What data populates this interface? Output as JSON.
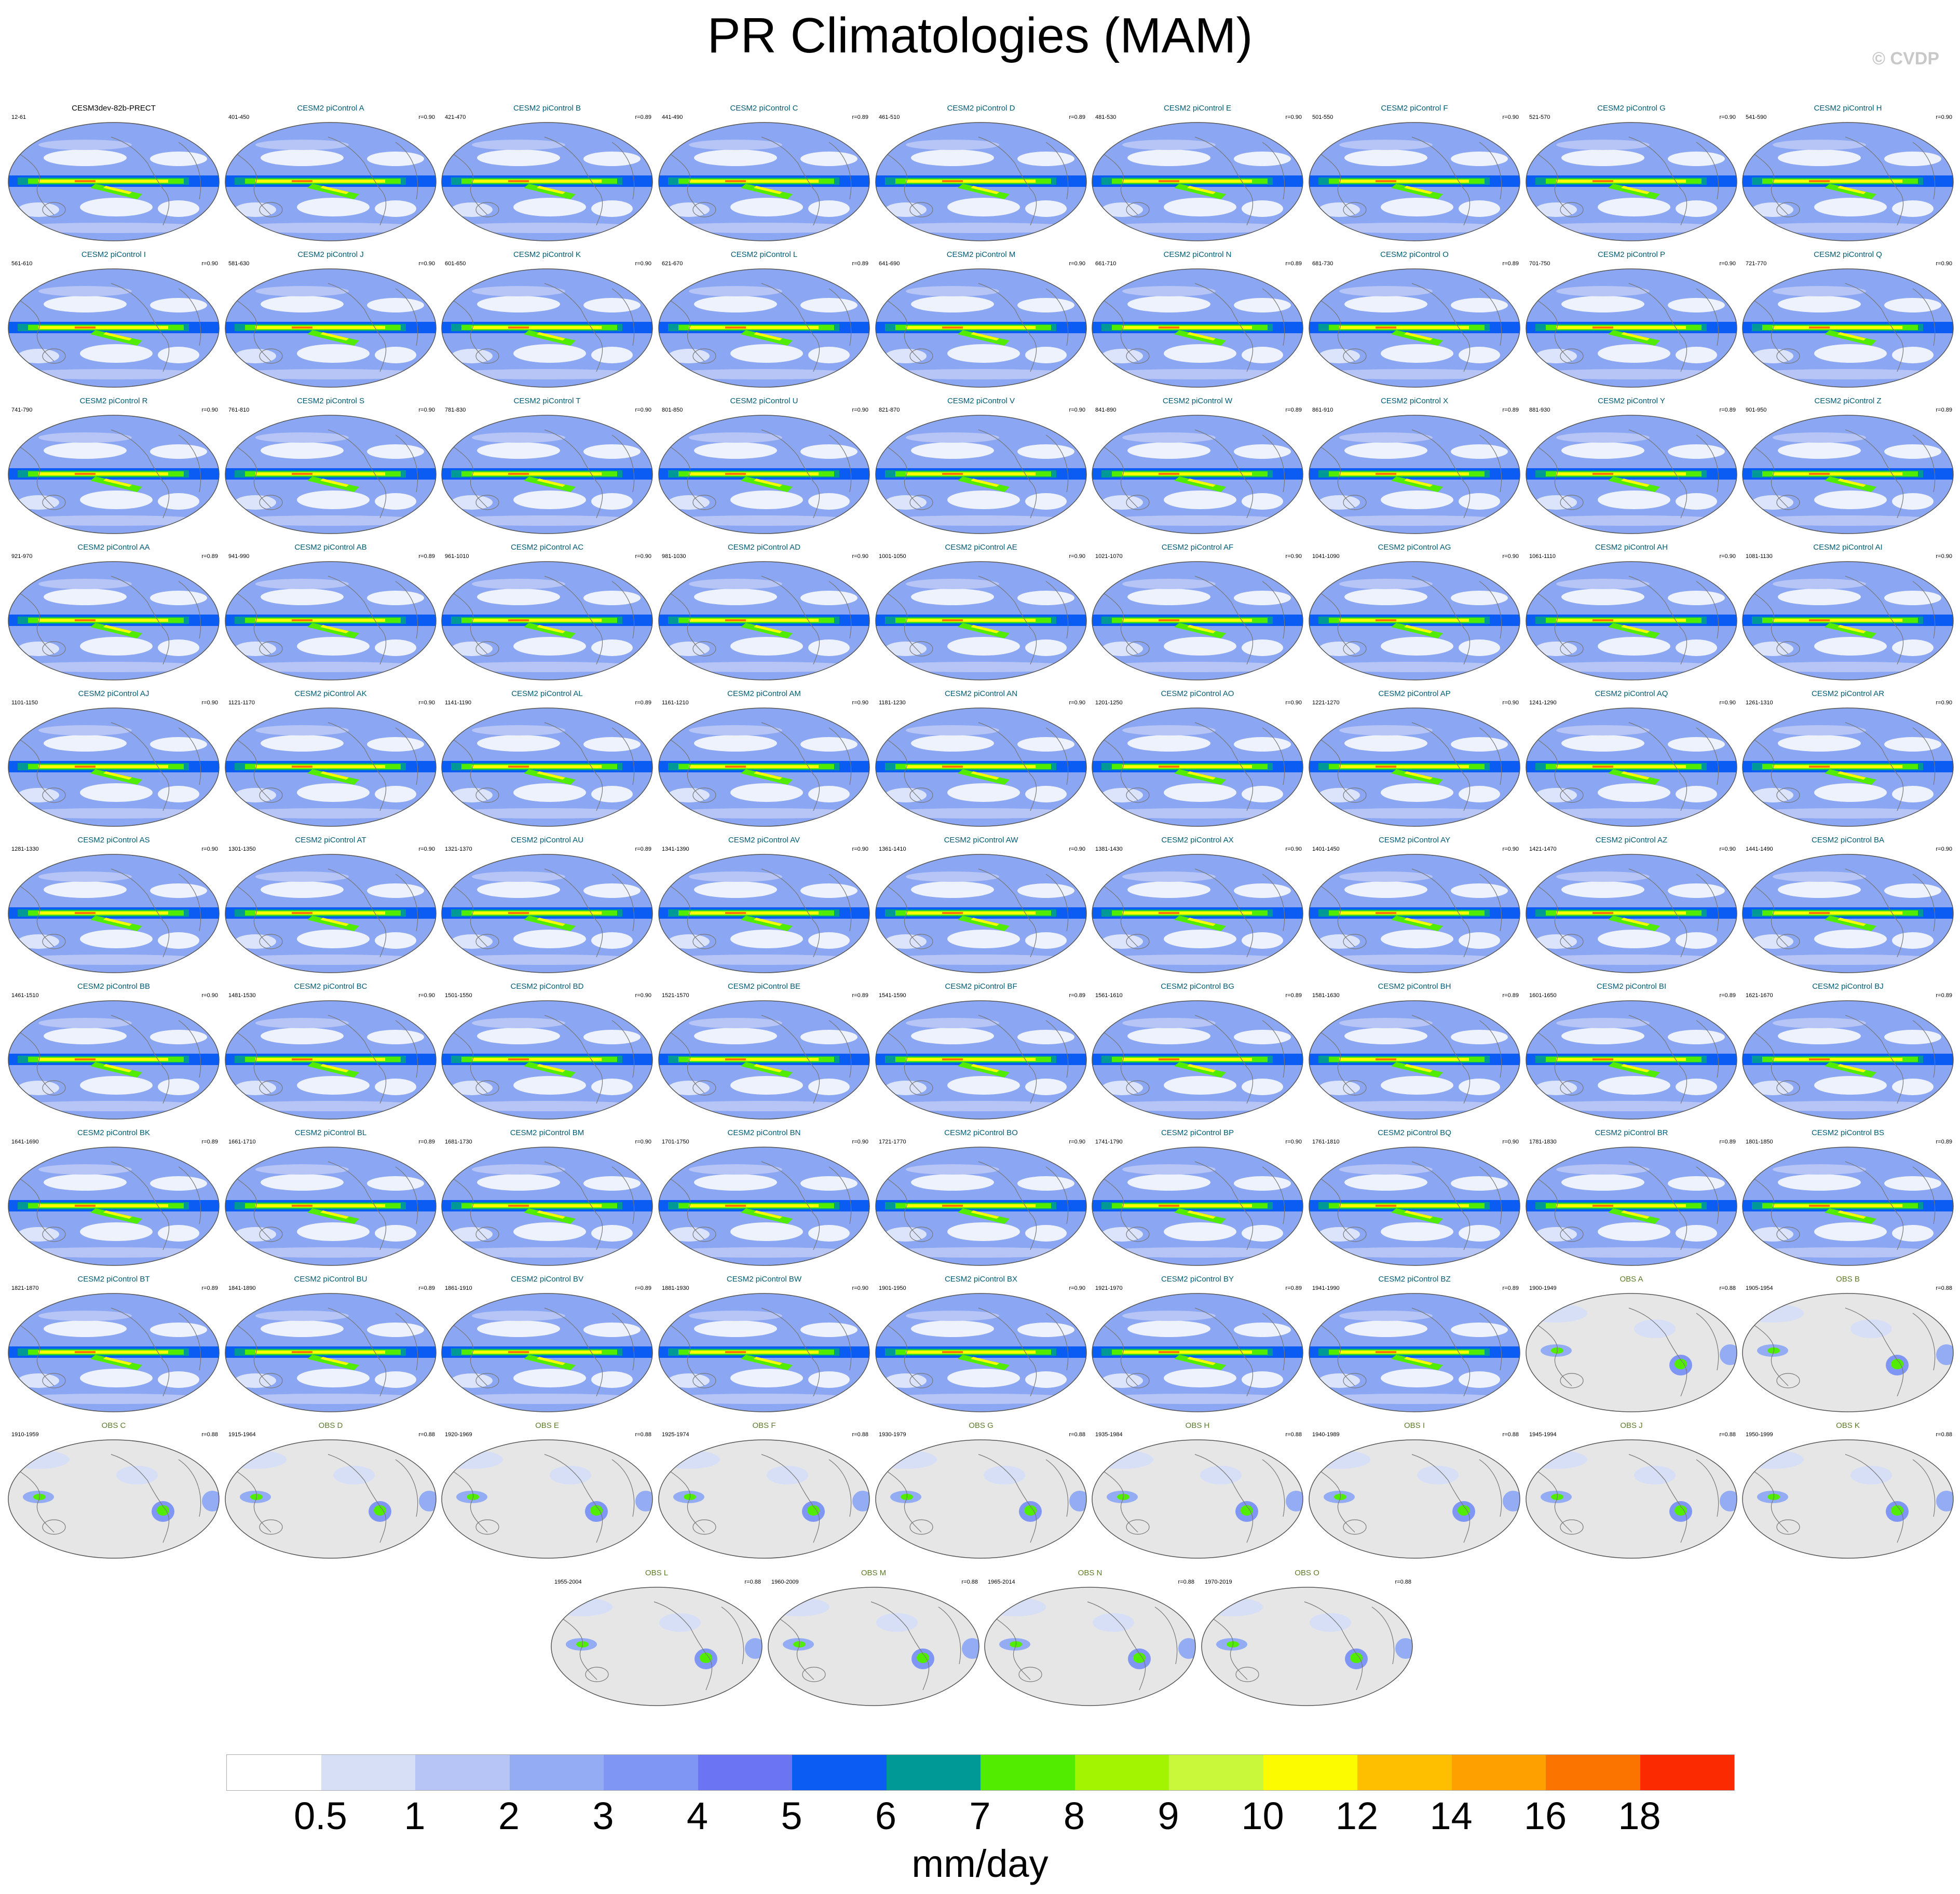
{
  "title": "PR Climatologies (MAM)",
  "credit": "© CVDP",
  "colors": {
    "model_title": "#005b73",
    "obs_title": "#5c7a2a",
    "land_obs_mask": "#e6e6e6"
  },
  "panels": [
    {
      "title": "CESM3dev-82b-PRECT",
      "years": "12-61",
      "r": "",
      "type": "ref"
    },
    {
      "title": "CESM2 piControl A",
      "years": "401-450",
      "r": "r=0.90",
      "type": "model"
    },
    {
      "title": "CESM2 piControl B",
      "years": "421-470",
      "r": "r=0.89",
      "type": "model"
    },
    {
      "title": "CESM2 piControl C",
      "years": "441-490",
      "r": "r=0.89",
      "type": "model"
    },
    {
      "title": "CESM2 piControl D",
      "years": "461-510",
      "r": "r=0.89",
      "type": "model"
    },
    {
      "title": "CESM2 piControl E",
      "years": "481-530",
      "r": "r=0.90",
      "type": "model"
    },
    {
      "title": "CESM2 piControl F",
      "years": "501-550",
      "r": "r=0.90",
      "type": "model"
    },
    {
      "title": "CESM2 piControl G",
      "years": "521-570",
      "r": "r=0.90",
      "type": "model"
    },
    {
      "title": "CESM2 piControl H",
      "years": "541-590",
      "r": "r=0.90",
      "type": "model"
    },
    {
      "title": "CESM2 piControl I",
      "years": "561-610",
      "r": "r=0.90",
      "type": "model"
    },
    {
      "title": "CESM2 piControl J",
      "years": "581-630",
      "r": "r=0.90",
      "type": "model"
    },
    {
      "title": "CESM2 piControl K",
      "years": "601-650",
      "r": "r=0.90",
      "type": "model"
    },
    {
      "title": "CESM2 piControl L",
      "years": "621-670",
      "r": "r=0.89",
      "type": "model"
    },
    {
      "title": "CESM2 piControl M",
      "years": "641-690",
      "r": "r=0.90",
      "type": "model"
    },
    {
      "title": "CESM2 piControl N",
      "years": "661-710",
      "r": "r=0.89",
      "type": "model"
    },
    {
      "title": "CESM2 piControl O",
      "years": "681-730",
      "r": "r=0.89",
      "type": "model"
    },
    {
      "title": "CESM2 piControl P",
      "years": "701-750",
      "r": "r=0.90",
      "type": "model"
    },
    {
      "title": "CESM2 piControl Q",
      "years": "721-770",
      "r": "r=0.90",
      "type": "model"
    },
    {
      "title": "CESM2 piControl R",
      "years": "741-790",
      "r": "r=0.90",
      "type": "model"
    },
    {
      "title": "CESM2 piControl S",
      "years": "761-810",
      "r": "r=0.90",
      "type": "model"
    },
    {
      "title": "CESM2 piControl T",
      "years": "781-830",
      "r": "r=0.90",
      "type": "model"
    },
    {
      "title": "CESM2 piControl U",
      "years": "801-850",
      "r": "r=0.90",
      "type": "model"
    },
    {
      "title": "CESM2 piControl V",
      "years": "821-870",
      "r": "r=0.90",
      "type": "model"
    },
    {
      "title": "CESM2 piControl W",
      "years": "841-890",
      "r": "r=0.89",
      "type": "model"
    },
    {
      "title": "CESM2 piControl X",
      "years": "861-910",
      "r": "r=0.89",
      "type": "model"
    },
    {
      "title": "CESM2 piControl Y",
      "years": "881-930",
      "r": "r=0.89",
      "type": "model"
    },
    {
      "title": "CESM2 piControl Z",
      "years": "901-950",
      "r": "r=0.89",
      "type": "model"
    },
    {
      "title": "CESM2 piControl AA",
      "years": "921-970",
      "r": "r=0.89",
      "type": "model"
    },
    {
      "title": "CESM2 piControl AB",
      "years": "941-990",
      "r": "r=0.89",
      "type": "model"
    },
    {
      "title": "CESM2 piControl AC",
      "years": "961-1010",
      "r": "r=0.90",
      "type": "model"
    },
    {
      "title": "CESM2 piControl AD",
      "years": "981-1030",
      "r": "r=0.90",
      "type": "model"
    },
    {
      "title": "CESM2 piControl AE",
      "years": "1001-1050",
      "r": "r=0.90",
      "type": "model"
    },
    {
      "title": "CESM2 piControl AF",
      "years": "1021-1070",
      "r": "r=0.90",
      "type": "model"
    },
    {
      "title": "CESM2 piControl AG",
      "years": "1041-1090",
      "r": "r=0.90",
      "type": "model"
    },
    {
      "title": "CESM2 piControl AH",
      "years": "1061-1110",
      "r": "r=0.90",
      "type": "model"
    },
    {
      "title": "CESM2 piControl AI",
      "years": "1081-1130",
      "r": "r=0.90",
      "type": "model"
    },
    {
      "title": "CESM2 piControl AJ",
      "years": "1101-1150",
      "r": "r=0.90",
      "type": "model"
    },
    {
      "title": "CESM2 piControl AK",
      "years": "1121-1170",
      "r": "r=0.90",
      "type": "model"
    },
    {
      "title": "CESM2 piControl AL",
      "years": "1141-1190",
      "r": "r=0.89",
      "type": "model"
    },
    {
      "title": "CESM2 piControl AM",
      "years": "1161-1210",
      "r": "r=0.90",
      "type": "model"
    },
    {
      "title": "CESM2 piControl AN",
      "years": "1181-1230",
      "r": "r=0.90",
      "type": "model"
    },
    {
      "title": "CESM2 piControl AO",
      "years": "1201-1250",
      "r": "r=0.90",
      "type": "model"
    },
    {
      "title": "CESM2 piControl AP",
      "years": "1221-1270",
      "r": "r=0.90",
      "type": "model"
    },
    {
      "title": "CESM2 piControl AQ",
      "years": "1241-1290",
      "r": "r=0.90",
      "type": "model"
    },
    {
      "title": "CESM2 piControl AR",
      "years": "1261-1310",
      "r": "r=0.90",
      "type": "model"
    },
    {
      "title": "CESM2 piControl AS",
      "years": "1281-1330",
      "r": "r=0.90",
      "type": "model"
    },
    {
      "title": "CESM2 piControl AT",
      "years": "1301-1350",
      "r": "r=0.90",
      "type": "model"
    },
    {
      "title": "CESM2 piControl AU",
      "years": "1321-1370",
      "r": "r=0.89",
      "type": "model"
    },
    {
      "title": "CESM2 piControl AV",
      "years": "1341-1390",
      "r": "r=0.90",
      "type": "model"
    },
    {
      "title": "CESM2 piControl AW",
      "years": "1361-1410",
      "r": "r=0.90",
      "type": "model"
    },
    {
      "title": "CESM2 piControl AX",
      "years": "1381-1430",
      "r": "r=0.90",
      "type": "model"
    },
    {
      "title": "CESM2 piControl AY",
      "years": "1401-1450",
      "r": "r=0.90",
      "type": "model"
    },
    {
      "title": "CESM2 piControl AZ",
      "years": "1421-1470",
      "r": "r=0.90",
      "type": "model"
    },
    {
      "title": "CESM2 piControl BA",
      "years": "1441-1490",
      "r": "r=0.90",
      "type": "model"
    },
    {
      "title": "CESM2 piControl BB",
      "years": "1461-1510",
      "r": "r=0.90",
      "type": "model"
    },
    {
      "title": "CESM2 piControl BC",
      "years": "1481-1530",
      "r": "r=0.90",
      "type": "model"
    },
    {
      "title": "CESM2 piControl BD",
      "years": "1501-1550",
      "r": "r=0.90",
      "type": "model"
    },
    {
      "title": "CESM2 piControl BE",
      "years": "1521-1570",
      "r": "r=0.89",
      "type": "model"
    },
    {
      "title": "CESM2 piControl BF",
      "years": "1541-1590",
      "r": "r=0.89",
      "type": "model"
    },
    {
      "title": "CESM2 piControl BG",
      "years": "1561-1610",
      "r": "r=0.89",
      "type": "model"
    },
    {
      "title": "CESM2 piControl BH",
      "years": "1581-1630",
      "r": "r=0.89",
      "type": "model"
    },
    {
      "title": "CESM2 piControl BI",
      "years": "1601-1650",
      "r": "r=0.89",
      "type": "model"
    },
    {
      "title": "CESM2 piControl BJ",
      "years": "1621-1670",
      "r": "r=0.89",
      "type": "model"
    },
    {
      "title": "CESM2 piControl BK",
      "years": "1641-1690",
      "r": "r=0.89",
      "type": "model"
    },
    {
      "title": "CESM2 piControl BL",
      "years": "1661-1710",
      "r": "r=0.89",
      "type": "model"
    },
    {
      "title": "CESM2 piControl BM",
      "years": "1681-1730",
      "r": "r=0.90",
      "type": "model"
    },
    {
      "title": "CESM2 piControl BN",
      "years": "1701-1750",
      "r": "r=0.90",
      "type": "model"
    },
    {
      "title": "CESM2 piControl BO",
      "years": "1721-1770",
      "r": "r=0.90",
      "type": "model"
    },
    {
      "title": "CESM2 piControl BP",
      "years": "1741-1790",
      "r": "r=0.90",
      "type": "model"
    },
    {
      "title": "CESM2 piControl BQ",
      "years": "1761-1810",
      "r": "r=0.90",
      "type": "model"
    },
    {
      "title": "CESM2 piControl BR",
      "years": "1781-1830",
      "r": "r=0.89",
      "type": "model"
    },
    {
      "title": "CESM2 piControl BS",
      "years": "1801-1850",
      "r": "r=0.89",
      "type": "model"
    },
    {
      "title": "CESM2 piControl BT",
      "years": "1821-1870",
      "r": "r=0.89",
      "type": "model"
    },
    {
      "title": "CESM2 piControl BU",
      "years": "1841-1890",
      "r": "r=0.89",
      "type": "model"
    },
    {
      "title": "CESM2 piControl BV",
      "years": "1861-1910",
      "r": "r=0.89",
      "type": "model"
    },
    {
      "title": "CESM2 piControl BW",
      "years": "1881-1930",
      "r": "r=0.90",
      "type": "model"
    },
    {
      "title": "CESM2 piControl BX",
      "years": "1901-1950",
      "r": "r=0.90",
      "type": "model"
    },
    {
      "title": "CESM2 piControl BY",
      "years": "1921-1970",
      "r": "r=0.89",
      "type": "model"
    },
    {
      "title": "CESM2 piControl BZ",
      "years": "1941-1990",
      "r": "r=0.89",
      "type": "model"
    },
    {
      "title": "OBS A",
      "years": "1900-1949",
      "r": "r=0.88",
      "type": "obs"
    },
    {
      "title": "OBS B",
      "years": "1905-1954",
      "r": "r=0.88",
      "type": "obs"
    },
    {
      "title": "OBS C",
      "years": "1910-1959",
      "r": "r=0.88",
      "type": "obs"
    },
    {
      "title": "OBS D",
      "years": "1915-1964",
      "r": "r=0.88",
      "type": "obs"
    },
    {
      "title": "OBS E",
      "years": "1920-1969",
      "r": "r=0.88",
      "type": "obs"
    },
    {
      "title": "OBS F",
      "years": "1925-1974",
      "r": "r=0.88",
      "type": "obs"
    },
    {
      "title": "OBS G",
      "years": "1930-1979",
      "r": "r=0.88",
      "type": "obs"
    },
    {
      "title": "OBS H",
      "years": "1935-1984",
      "r": "r=0.88",
      "type": "obs"
    },
    {
      "title": "OBS I",
      "years": "1940-1989",
      "r": "r=0.88",
      "type": "obs"
    },
    {
      "title": "OBS J",
      "years": "1945-1994",
      "r": "r=0.88",
      "type": "obs"
    },
    {
      "title": "OBS K",
      "years": "1950-1999",
      "r": "r=0.88",
      "type": "obs"
    },
    {
      "title": "OBS L",
      "years": "1955-2004",
      "r": "r=0.88",
      "type": "obs"
    },
    {
      "title": "OBS M",
      "years": "1960-2009",
      "r": "r=0.88",
      "type": "obs"
    },
    {
      "title": "OBS N",
      "years": "1965-2014",
      "r": "r=0.88",
      "type": "obs"
    },
    {
      "title": "OBS O",
      "years": "1970-2019",
      "r": "r=0.88",
      "type": "obs"
    }
  ],
  "colorbar": {
    "colors": [
      "#ffffff",
      "#d7dff7",
      "#b6c5f5",
      "#94acf4",
      "#7f96f5",
      "#6b74f3",
      "#0b5cf3",
      "#009996",
      "#51ec00",
      "#a3f400",
      "#c8f839",
      "#fdfb00",
      "#fdbf00",
      "#fda000",
      "#fb7400",
      "#fb2a00"
    ],
    "labels": [
      "0.5",
      "1",
      "2",
      "3",
      "4",
      "5",
      "6",
      "7",
      "8",
      "9",
      "10",
      "12",
      "14",
      "16",
      "18"
    ],
    "units": "mm/day"
  }
}
